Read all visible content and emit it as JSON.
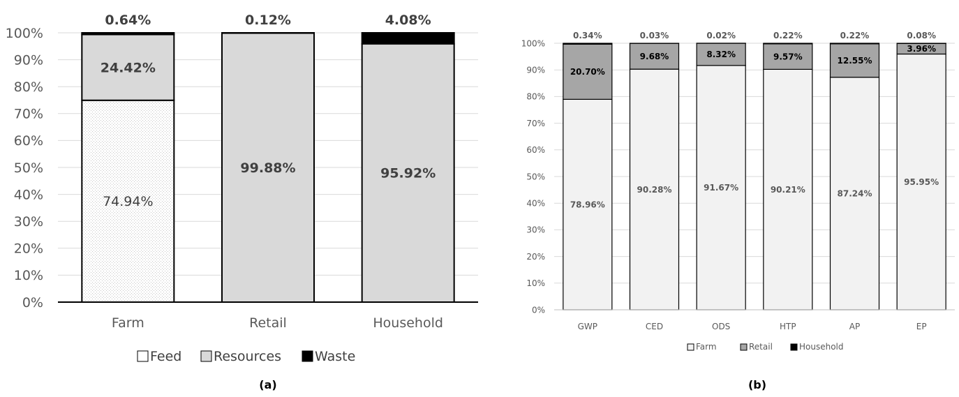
{
  "chart_data": [
    {
      "panel_label": "(a)",
      "type": "bar",
      "stacked": true,
      "categories": [
        "Farm",
        "Retail",
        "Household"
      ],
      "series": [
        {
          "name": "Feed",
          "values": [
            74.94,
            0,
            0
          ],
          "color": "#ffffff",
          "pattern": "dotted"
        },
        {
          "name": "Resources",
          "values": [
            24.42,
            99.88,
            95.92
          ],
          "color": "#d9d9d9"
        },
        {
          "name": "Waste",
          "values": [
            0.64,
            0.12,
            4.08
          ],
          "color": "#000000"
        }
      ],
      "segment_labels": [
        [
          "74.94%",
          "",
          ""
        ],
        [
          "24.42%",
          "99.88%",
          "95.92%"
        ],
        [
          "0.64%",
          "0.12%",
          "4.08%"
        ]
      ],
      "y_ticks": [
        "0%",
        "10%",
        "20%",
        "30%",
        "40%",
        "50%",
        "60%",
        "70%",
        "80%",
        "90%",
        "100%"
      ],
      "ylim": [
        0,
        100
      ],
      "grid": true,
      "legend_position": "bottom"
    },
    {
      "panel_label": "(b)",
      "type": "bar",
      "stacked": true,
      "categories": [
        "GWP",
        "CED",
        "ODS",
        "HTP",
        "AP",
        "EP"
      ],
      "series": [
        {
          "name": "Farm",
          "values": [
            78.96,
            90.28,
            91.67,
            90.21,
            87.24,
            95.95
          ],
          "color": "#f2f2f2"
        },
        {
          "name": "Retail",
          "values": [
            20.7,
            9.68,
            8.32,
            9.57,
            12.55,
            3.96
          ],
          "color": "#a6a6a6"
        },
        {
          "name": "Household",
          "values": [
            0.34,
            0.03,
            0.02,
            0.22,
            0.22,
            0.08
          ],
          "color": "#000000"
        }
      ],
      "segment_labels": [
        [
          "78.96%",
          "90.28%",
          "91.67%",
          "90.21%",
          "87.24%",
          "95.95%"
        ],
        [
          "20.70%",
          "9.68%",
          "8.32%",
          "9.57%",
          "12.55%",
          "3.96%"
        ],
        [
          "0.34%",
          "0.03%",
          "0.02%",
          "0.22%",
          "0.22%",
          "0.08%"
        ]
      ],
      "y_ticks": [
        "0%",
        "10%",
        "20%",
        "30%",
        "40%",
        "50%",
        "60%",
        "70%",
        "80%",
        "90%",
        "100%"
      ],
      "ylim": [
        0,
        100
      ],
      "grid": true,
      "legend_position": "bottom"
    }
  ]
}
